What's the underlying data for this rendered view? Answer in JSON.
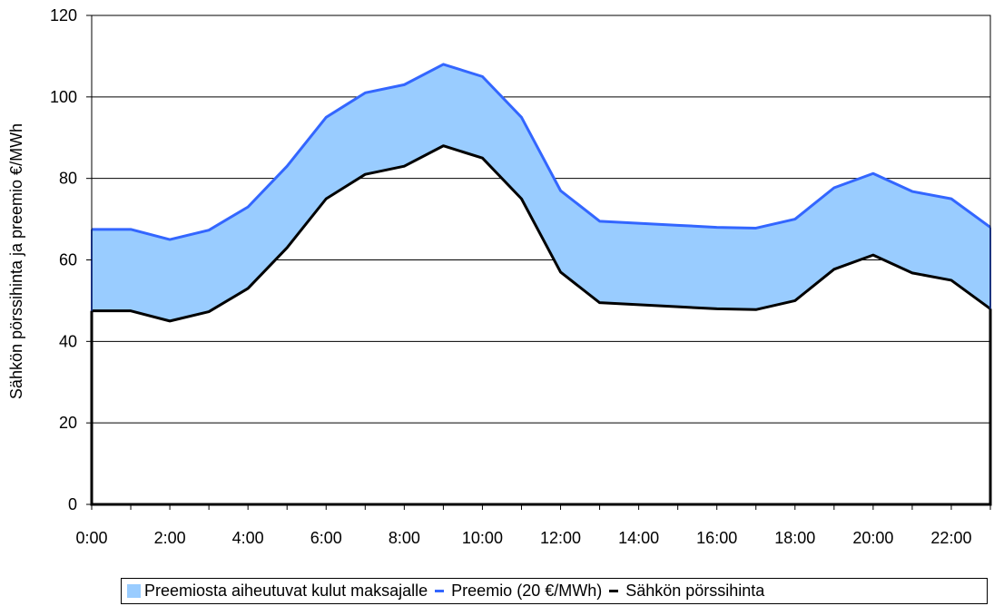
{
  "chart_data": {
    "type": "area",
    "title": "",
    "xlabel": "",
    "ylabel": "Sähkön pörssihinta ja preemio €/MWh",
    "ylim": [
      0,
      120
    ],
    "yticks": [
      "0",
      "20",
      "40",
      "60",
      "80",
      "100",
      "120"
    ],
    "xlim": [
      0,
      23
    ],
    "xticks": [
      "0:00",
      "2:00",
      "4:00",
      "6:00",
      "8:00",
      "10:00",
      "12:00",
      "14:00",
      "16:00",
      "18:00",
      "20:00",
      "22:00"
    ],
    "grid": true,
    "legend_position": "bottom",
    "x": [
      0,
      1,
      2,
      3,
      4,
      5,
      6,
      7,
      8,
      9,
      10,
      11,
      12,
      13,
      14,
      15,
      16,
      17,
      18,
      19,
      20,
      21,
      22,
      23
    ],
    "series": [
      {
        "name": "Preemiosta aiheutuvat kulut maksajalle",
        "kind": "band",
        "color": "#99ccff",
        "lower": "Sähkön pörssihinta",
        "upper": "Preemio (20 €/MWh)"
      },
      {
        "name": "Preemio (20 €/MWh)",
        "kind": "line",
        "color": "#3366ff",
        "values": [
          67.5,
          67.5,
          65,
          67.3,
          73,
          83,
          95,
          101,
          103,
          108,
          105,
          95,
          77,
          69.5,
          69,
          68.5,
          68,
          67.8,
          70,
          77.7,
          81.2,
          76.8,
          75,
          68
        ]
      },
      {
        "name": "Sähkön pörssihinta",
        "kind": "line",
        "color": "#000000",
        "values": [
          47.5,
          47.5,
          45,
          47.3,
          53,
          63,
          75,
          81,
          83,
          88,
          85,
          75,
          57,
          49.5,
          49,
          48.5,
          48,
          47.8,
          50,
          57.7,
          61.2,
          56.8,
          55,
          48
        ]
      }
    ]
  },
  "legend": {
    "item1": "Preemiosta aiheutuvat kulut maksajalle",
    "item2": "Preemio (20 €/MWh)",
    "item3": "Sähkön pörssihinta"
  }
}
